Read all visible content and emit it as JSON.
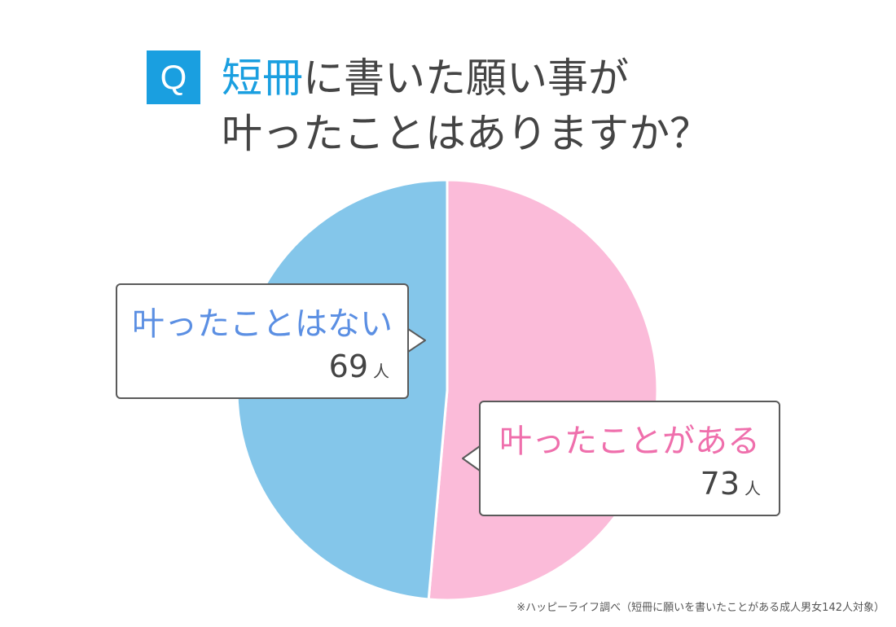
{
  "title": {
    "badge": "Q",
    "line1_accent": "短冊",
    "line1_rest": "に書いた願い事が",
    "line2": "叶ったことはありますか？"
  },
  "chart_data": {
    "type": "pie",
    "start_angle_deg": 0,
    "direction": "clockwise",
    "slices": [
      {
        "label": "叶ったことがある",
        "value": 73,
        "unit": "人",
        "color": "#fbbbd9",
        "label_color": "#ef6fac"
      },
      {
        "label": "叶ったことはない",
        "value": 69,
        "unit": "人",
        "color": "#84c6ea",
        "label_color": "#5b8fe3"
      }
    ],
    "slice_border_color": "#ffffff"
  },
  "footnote": "※ハッピーライフ調べ（短冊に願いを書いたことがある成人男女142人対象）"
}
